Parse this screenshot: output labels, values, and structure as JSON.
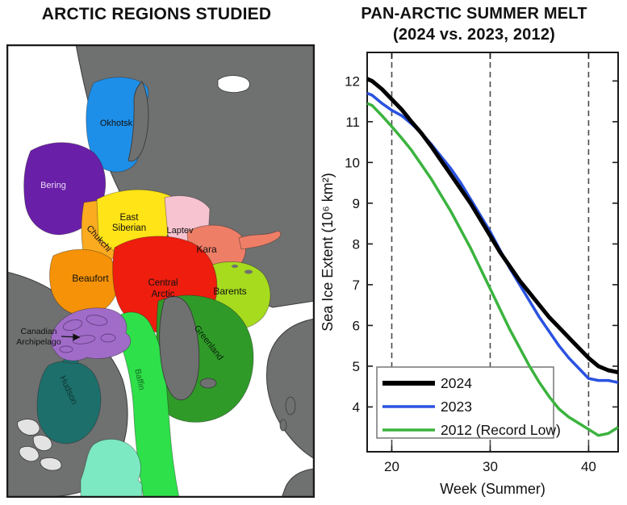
{
  "left_panel": {
    "title": "ARCTIC REGIONS STUDIED",
    "regions": {
      "okhotsk": "Okhotsk",
      "bering": "Bering",
      "chukchi": "Chukchi",
      "east_siberian_line1": "East",
      "east_siberian_line2": "Siberian",
      "laptev": "Laptev",
      "kara": "Kara",
      "beaufort": "Beaufort",
      "central_arctic_line1": "Central",
      "central_arctic_line2": "Arctic",
      "barents": "Barents",
      "canadian_archipelago_line1": "Canadian",
      "canadian_archipelago_line2": "Archipelago",
      "hudson": "Hudson",
      "baffin": "Baffin",
      "greenland": "Greenland"
    },
    "region_colors": {
      "okhotsk": "#1e8fe8",
      "bering": "#6a1fa8",
      "chukchi": "#fbab1f",
      "east_siberian": "#ffe417",
      "laptev": "#f8c3d0",
      "kara": "#ef7e67",
      "beaufort": "#f59207",
      "central_arctic": "#ee1d0e",
      "barents": "#a6db1e",
      "canadian_archipelago": "#a06cc8",
      "hudson": "#1d6f6b",
      "baffin": "#2ee04a",
      "greenland_sea": "#2f9a28",
      "st_lawrence": "#7de9c2",
      "land": "#6f7070",
      "lakes": "#e3e3e3",
      "ocean": "#ffffff"
    }
  },
  "right_panel": {
    "title_line1": "PAN-ARCTIC SUMMER MELT",
    "title_line2": "(2024 vs. 2023, 2012)"
  },
  "chart_data": {
    "type": "line",
    "title": "PAN-ARCTIC SUMMER MELT (2024 vs. 2023, 2012)",
    "xlabel": "Week (Summer)",
    "ylabel": "Sea Ice Extent (10⁶ km²)",
    "xlim": [
      17.5,
      43
    ],
    "ylim": [
      2.9,
      12.7
    ],
    "x_ticks": [
      20,
      30,
      40
    ],
    "y_ticks": [
      4,
      5,
      6,
      7,
      8,
      9,
      10,
      11,
      12
    ],
    "grid": "vertical dashed lines at x ticks",
    "legend_position": "lower-left",
    "x": [
      17.5,
      18,
      19,
      20,
      21,
      22,
      23,
      24,
      25,
      26,
      27,
      28,
      29,
      30,
      31,
      32,
      33,
      34,
      35,
      36,
      37,
      38,
      39,
      40,
      41,
      42,
      43
    ],
    "series": [
      {
        "name": "2024",
        "color": "#000000",
        "width": 5,
        "values": [
          12.05,
          12.0,
          11.8,
          11.55,
          11.3,
          11.0,
          10.72,
          10.4,
          10.05,
          9.7,
          9.35,
          9.0,
          8.6,
          8.2,
          7.8,
          7.45,
          7.1,
          6.8,
          6.5,
          6.2,
          5.95,
          5.7,
          5.45,
          5.2,
          5.0,
          4.9,
          4.85
        ]
      },
      {
        "name": "2023",
        "color": "#2a52e0",
        "width": 3.5,
        "values": [
          11.7,
          11.65,
          11.45,
          11.28,
          11.15,
          10.95,
          10.72,
          10.45,
          10.15,
          9.85,
          9.5,
          9.1,
          8.7,
          8.3,
          7.85,
          7.4,
          7.0,
          6.6,
          6.2,
          5.85,
          5.5,
          5.2,
          4.95,
          4.7,
          4.65,
          4.65,
          4.6
        ]
      },
      {
        "name": "2012 (Record Low)",
        "color": "#3bb33e",
        "width": 3.5,
        "values": [
          11.45,
          11.4,
          11.15,
          10.88,
          10.6,
          10.3,
          9.95,
          9.6,
          9.2,
          8.8,
          8.35,
          7.9,
          7.4,
          6.9,
          6.4,
          5.9,
          5.45,
          5.0,
          4.6,
          4.25,
          3.95,
          3.75,
          3.6,
          3.45,
          3.3,
          3.35,
          3.5
        ]
      }
    ],
    "style": {
      "gridline_color": "#4a4a4a",
      "frame_color": "#1a1a1a",
      "legend_border_color": "#777777"
    }
  }
}
